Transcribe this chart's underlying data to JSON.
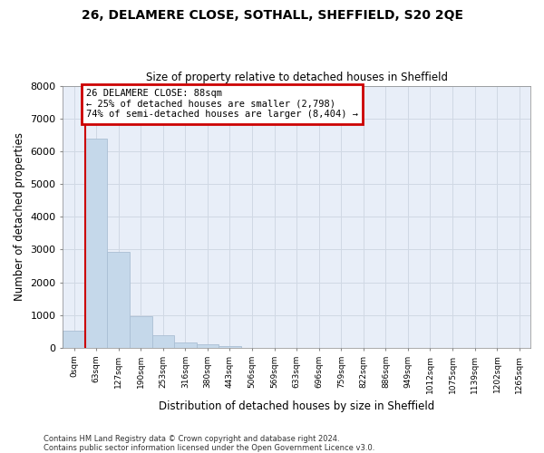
{
  "title_line1": "26, DELAMERE CLOSE, SOTHALL, SHEFFIELD, S20 2QE",
  "title_line2": "Size of property relative to detached houses in Sheffield",
  "xlabel": "Distribution of detached houses by size in Sheffield",
  "ylabel": "Number of detached properties",
  "categories": [
    "0sqm",
    "63sqm",
    "127sqm",
    "190sqm",
    "253sqm",
    "316sqm",
    "380sqm",
    "443sqm",
    "506sqm",
    "569sqm",
    "633sqm",
    "696sqm",
    "759sqm",
    "822sqm",
    "886sqm",
    "949sqm",
    "1012sqm",
    "1075sqm",
    "1139sqm",
    "1202sqm",
    "1265sqm"
  ],
  "bar_values": [
    530,
    6380,
    2920,
    960,
    380,
    175,
    110,
    65,
    0,
    0,
    0,
    0,
    0,
    0,
    0,
    0,
    0,
    0,
    0,
    0,
    0
  ],
  "bar_color": "#c5d8ea",
  "bar_edge_color": "#aabfd4",
  "annotation_text": "26 DELAMERE CLOSE: 88sqm\n← 25% of detached houses are smaller (2,798)\n74% of semi-detached houses are larger (8,404) →",
  "annotation_box_color": "#cc0000",
  "vline_color": "#cc0000",
  "ylim": [
    0,
    8000
  ],
  "yticks": [
    0,
    1000,
    2000,
    3000,
    4000,
    5000,
    6000,
    7000,
    8000
  ],
  "grid_color": "#d0d8e4",
  "bg_color": "#e8eef8",
  "footnote_line1": "Contains HM Land Registry data © Crown copyright and database right 2024.",
  "footnote_line2": "Contains public sector information licensed under the Open Government Licence v3.0."
}
